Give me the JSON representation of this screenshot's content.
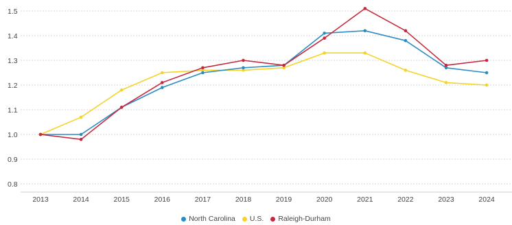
{
  "chart_data": {
    "type": "line",
    "title": "",
    "xlabel": "",
    "ylabel": "",
    "categories": [
      "2013",
      "2014",
      "2015",
      "2016",
      "2017",
      "2018",
      "2019",
      "2020",
      "2021",
      "2022",
      "2023",
      "2024"
    ],
    "yticks": [
      "0.8",
      "0.9",
      "1.0",
      "1.1",
      "1.2",
      "1.3",
      "1.4",
      "1.5"
    ],
    "ylim": [
      0.8,
      1.5
    ],
    "grid": true,
    "legend_position": "bottom",
    "series": [
      {
        "name": "North Carolina",
        "color": "#2b8cc4",
        "values": [
          1.0,
          1.0,
          1.11,
          1.19,
          1.25,
          1.27,
          1.28,
          1.41,
          1.42,
          1.38,
          1.27,
          1.25
        ]
      },
      {
        "name": "U.S.",
        "color": "#f5d327",
        "values": [
          1.0,
          1.07,
          1.18,
          1.25,
          1.26,
          1.26,
          1.27,
          1.33,
          1.33,
          1.26,
          1.21,
          1.2
        ]
      },
      {
        "name": "Raleigh-Durham",
        "color": "#c6283e",
        "values": [
          1.0,
          0.98,
          1.11,
          1.21,
          1.27,
          1.3,
          1.28,
          1.39,
          1.51,
          1.42,
          1.28,
          1.3
        ]
      }
    ]
  }
}
